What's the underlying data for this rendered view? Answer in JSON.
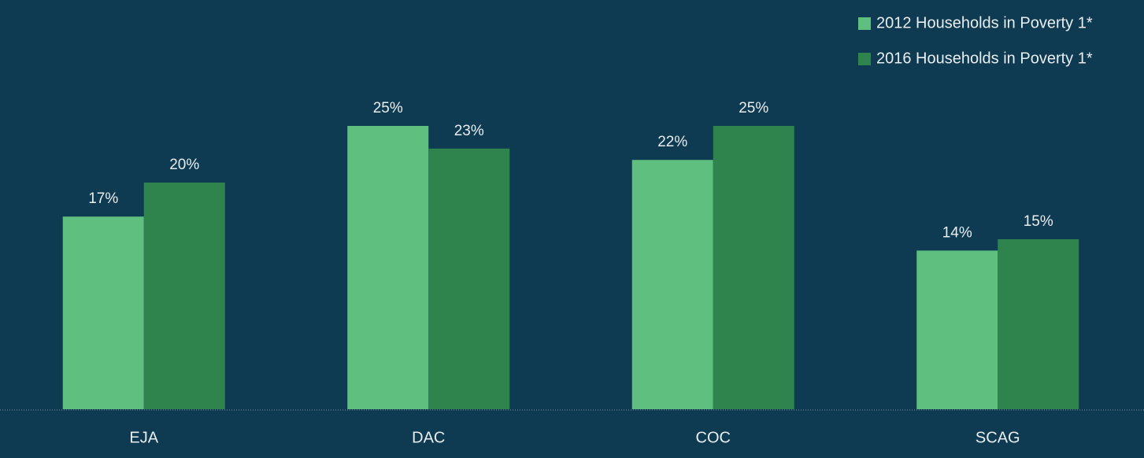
{
  "chart_data": {
    "type": "bar",
    "categories": [
      "EJA",
      "DAC",
      "COC",
      "SCAG"
    ],
    "series": [
      {
        "name": "2012 Households in Poverty 1*",
        "color": "#5fbf7f",
        "values": [
          17,
          25,
          22,
          14
        ],
        "value_labels": [
          "17%",
          "25%",
          "22%",
          "14%"
        ]
      },
      {
        "name": "2016 Households in Poverty 1*",
        "color": "#2e844c",
        "values": [
          20,
          23,
          25,
          15
        ],
        "value_labels": [
          "20%",
          "23%",
          "25%",
          "15%"
        ]
      }
    ],
    "legend": "top-right"
  }
}
